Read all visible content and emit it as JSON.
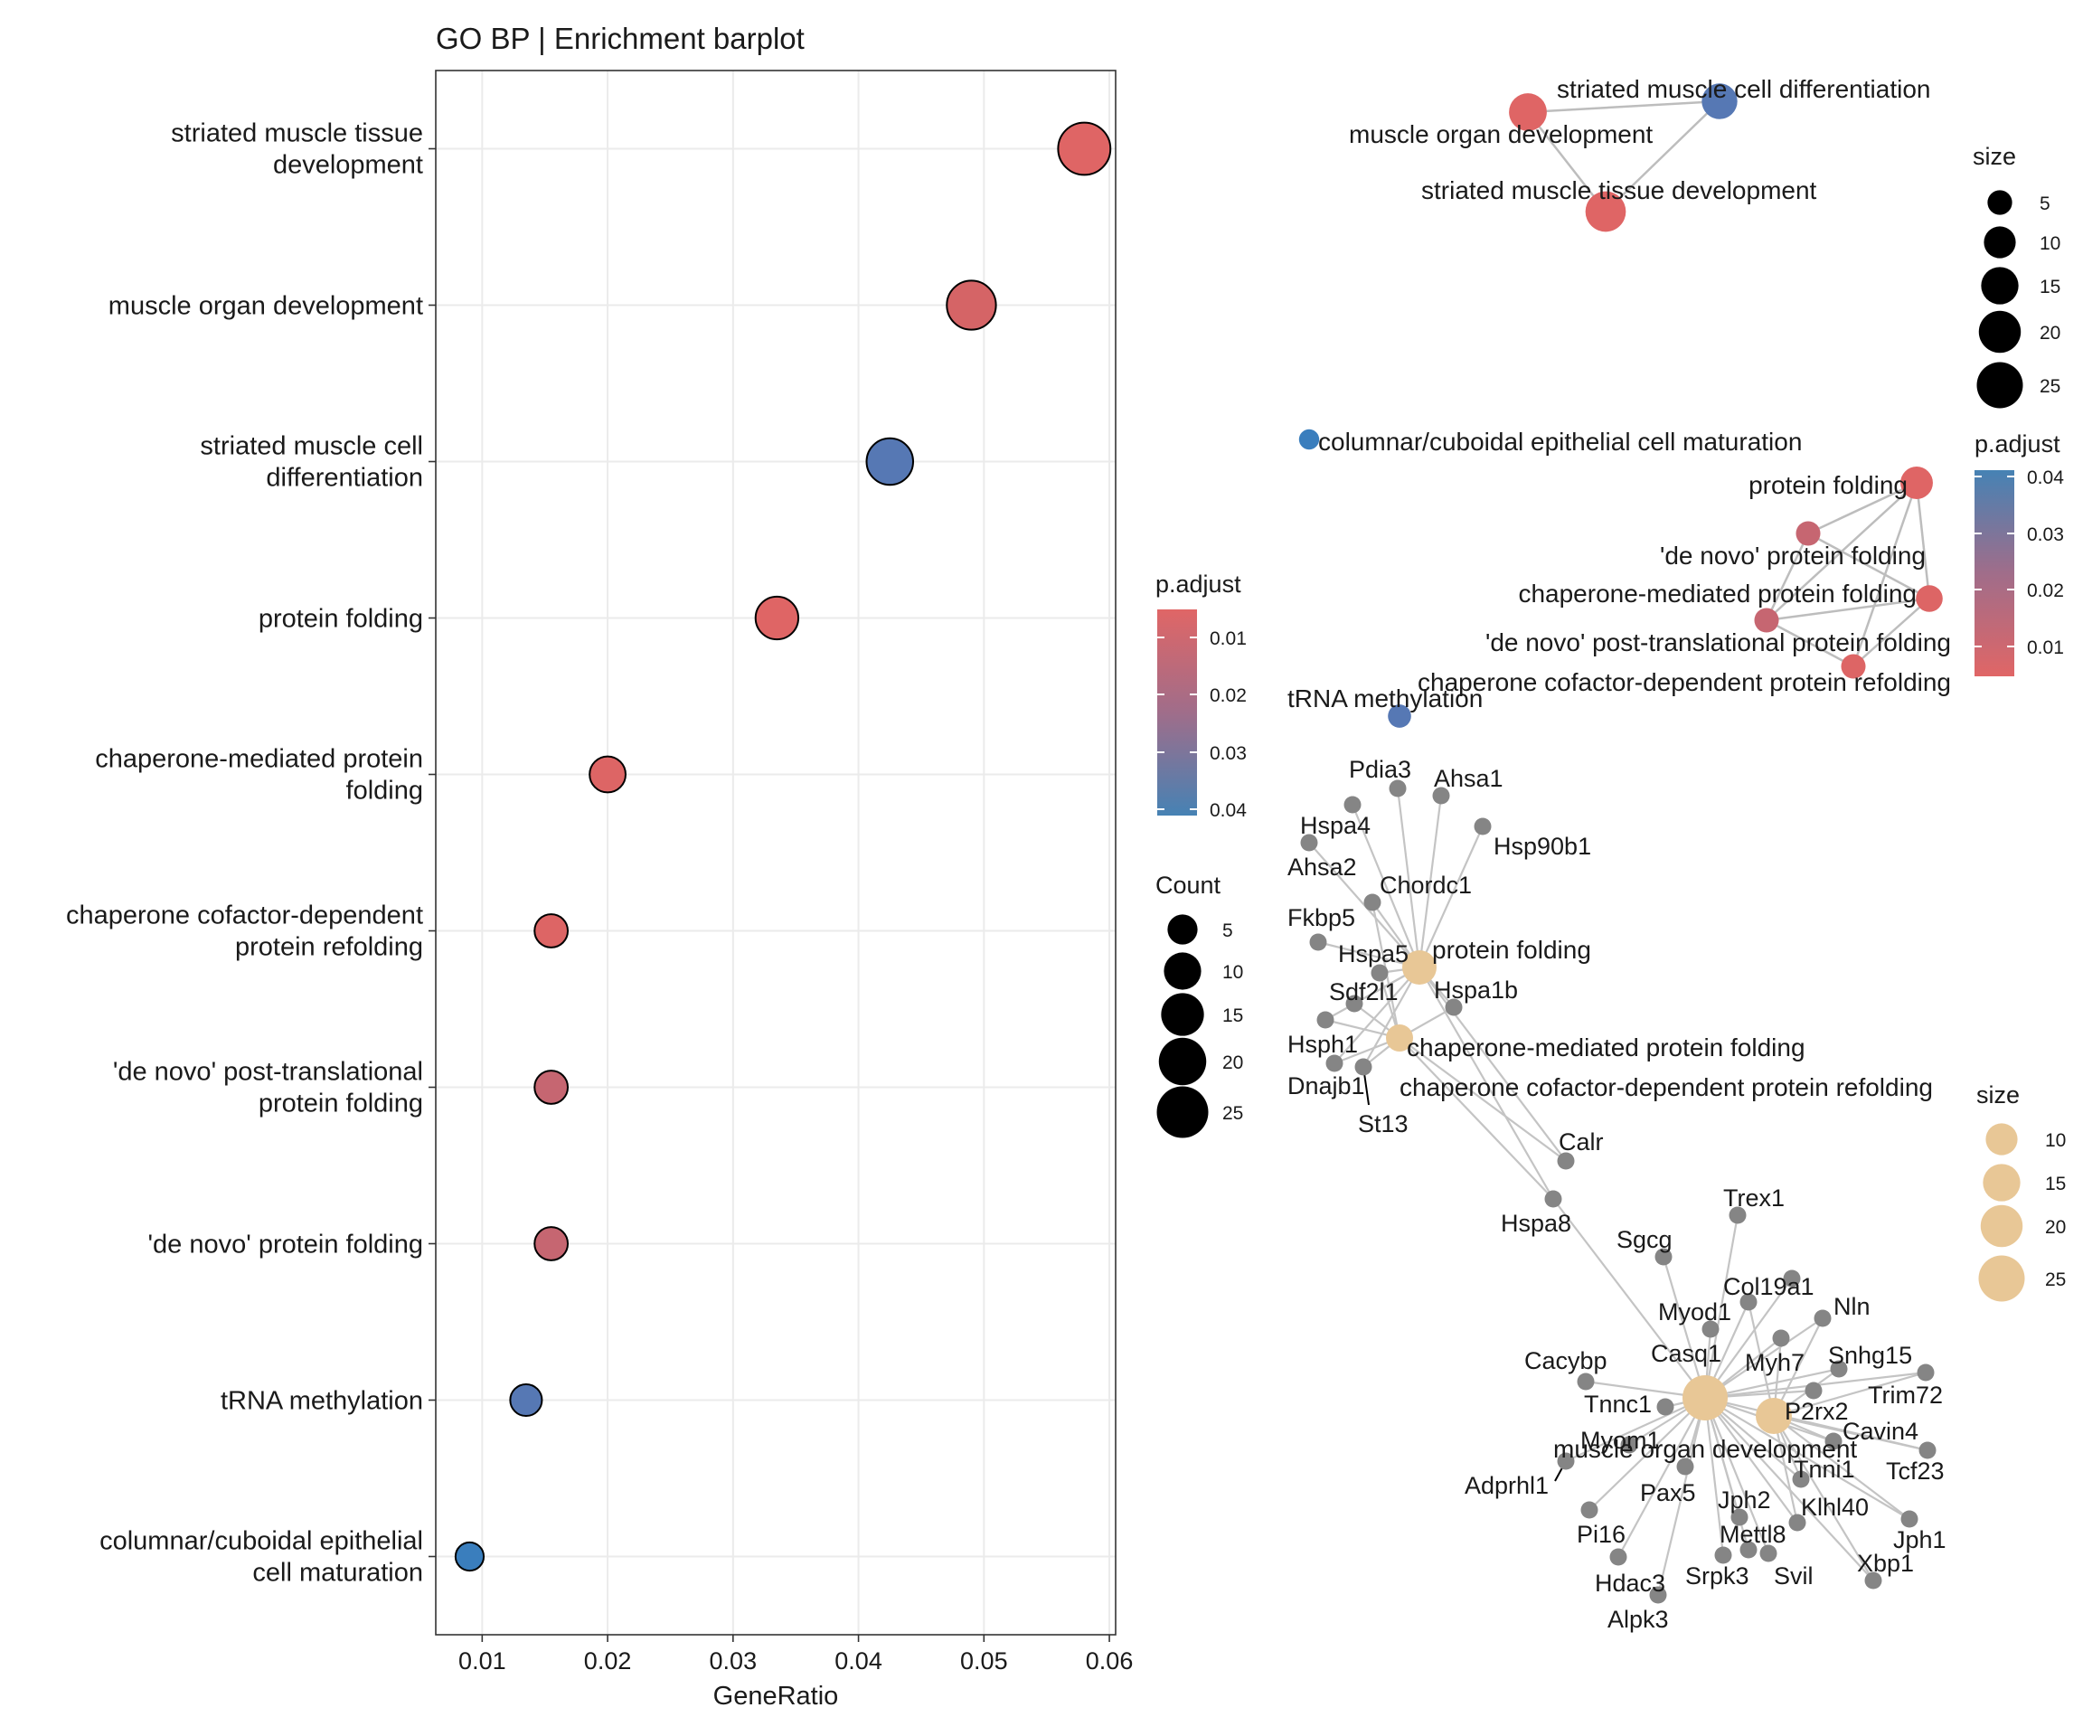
{
  "chart_data": [
    {
      "type": "scatter",
      "title": "GO BP | Enrichment barplot",
      "xlabel": "GeneRatio",
      "ylabel": "",
      "xlim": [
        0.0063,
        0.0605
      ],
      "xticks": [
        0.01,
        0.02,
        0.03,
        0.04,
        0.05,
        0.06
      ],
      "xtick_labels": [
        "0.01",
        "0.02",
        "0.03",
        "0.04",
        "0.05",
        "0.06"
      ],
      "grid": true,
      "categories": [
        {
          "line1": "striated muscle tissue",
          "line2": "development"
        },
        {
          "line1": "muscle organ development",
          "line2": ""
        },
        {
          "line1": "striated muscle cell",
          "line2": "differentiation"
        },
        {
          "line1": "protein folding",
          "line2": ""
        },
        {
          "line1": "chaperone-mediated protein",
          "line2": "folding"
        },
        {
          "line1": "chaperone cofactor-dependent",
          "line2": "protein refolding"
        },
        {
          "line1": "'de novo' post-translational",
          "line2": "protein folding"
        },
        {
          "line1": "'de novo' protein folding",
          "line2": ""
        },
        {
          "line1": "tRNA methylation",
          "line2": ""
        },
        {
          "line1": "columnar/cuboidal epithelial",
          "line2": "cell maturation"
        }
      ],
      "points": [
        {
          "gene_ratio": 0.058,
          "count": 26,
          "p_adjust": 0.006,
          "color": "#df6565"
        },
        {
          "gene_ratio": 0.049,
          "count": 22,
          "p_adjust": 0.006,
          "color": "#d56466"
        },
        {
          "gene_ratio": 0.0425,
          "count": 19,
          "p_adjust": 0.037,
          "color": "#5678b4"
        },
        {
          "gene_ratio": 0.0335,
          "count": 15,
          "p_adjust": 0.006,
          "color": "#df6565"
        },
        {
          "gene_ratio": 0.02,
          "count": 9,
          "p_adjust": 0.007,
          "color": "#dd6565"
        },
        {
          "gene_ratio": 0.0155,
          "count": 7,
          "p_adjust": 0.007,
          "color": "#dd6565"
        },
        {
          "gene_ratio": 0.0155,
          "count": 7,
          "p_adjust": 0.016,
          "color": "#c66671"
        },
        {
          "gene_ratio": 0.0155,
          "count": 7,
          "p_adjust": 0.016,
          "color": "#c66671"
        },
        {
          "gene_ratio": 0.0135,
          "count": 6,
          "p_adjust": 0.037,
          "color": "#5678b4"
        },
        {
          "gene_ratio": 0.009,
          "count": 4,
          "p_adjust": 0.043,
          "color": "#3a7ebd"
        }
      ],
      "legend_padjust": {
        "title": "p.adjust",
        "ticks": [
          "0.01",
          "0.02",
          "0.03",
          "0.04"
        ],
        "colors": [
          "#e06666",
          "#4682b4"
        ]
      },
      "legend_count": {
        "title": "Count",
        "values": [
          "5",
          "10",
          "15",
          "20",
          "25"
        ]
      }
    },
    {
      "type": "network",
      "title": "",
      "nodes": [
        {
          "label": "striated muscle cell differentiation",
          "size": 19,
          "p_adjust": 0.037,
          "color": "#5678b4"
        },
        {
          "label": "muscle organ development",
          "size": 22,
          "p_adjust": 0.006,
          "color": "#df6565"
        },
        {
          "label": "striated muscle tissue development",
          "size": 26,
          "p_adjust": 0.006,
          "color": "#df6565"
        },
        {
          "label": "columnar/cuboidal epithelial cell maturation",
          "size": 4,
          "p_adjust": 0.043,
          "color": "#3a7ebd"
        },
        {
          "label": "protein folding",
          "size": 15,
          "p_adjust": 0.006,
          "color": "#df6565"
        },
        {
          "label": "'de novo' protein folding",
          "size": 7,
          "p_adjust": 0.016,
          "color": "#c66671"
        },
        {
          "label": "chaperone-mediated protein folding",
          "size": 9,
          "p_adjust": 0.007,
          "color": "#dd6565"
        },
        {
          "label": "'de novo' post-translational protein folding",
          "size": 7,
          "p_adjust": 0.016,
          "color": "#c66671"
        },
        {
          "label": "chaperone cofactor-dependent protein refolding",
          "size": 7,
          "p_adjust": 0.007,
          "color": "#dd6565"
        },
        {
          "label": "tRNA methylation",
          "size": 6,
          "p_adjust": 0.037,
          "color": "#5678b4"
        }
      ],
      "edges": [
        [
          "muscle organ development",
          "striated muscle cell differentiation"
        ],
        [
          "striated muscle cell differentiation",
          "striated muscle tissue development"
        ],
        [
          "muscle organ development",
          "striated muscle tissue development"
        ],
        [
          "protein folding",
          "'de novo' protein folding"
        ],
        [
          "protein folding",
          "chaperone-mediated protein folding"
        ],
        [
          "protein folding",
          "'de novo' post-translational protein folding"
        ],
        [
          "protein folding",
          "chaperone cofactor-dependent protein refolding"
        ],
        [
          "'de novo' protein folding",
          "'de novo' post-translational protein folding"
        ],
        [
          "'de novo' protein folding",
          "chaperone-mediated protein folding"
        ],
        [
          "chaperone-mediated protein folding",
          "'de novo' post-translational protein folding"
        ],
        [
          "chaperone-mediated protein folding",
          "chaperone cofactor-dependent protein refolding"
        ],
        [
          "'de novo' post-translational protein folding",
          "chaperone cofactor-dependent protein refolding"
        ]
      ],
      "legend_size": {
        "title": "size",
        "values": [
          "5",
          "10",
          "15",
          "20",
          "25"
        ]
      },
      "legend_padjust": {
        "title": "p.adjust",
        "ticks": [
          "0.04",
          "0.03",
          "0.02",
          "0.01"
        ],
        "colors": [
          "#4682b4",
          "#e06666"
        ]
      }
    },
    {
      "type": "network",
      "title": "",
      "category_color": "#e8c796",
      "gene_color": "#858585",
      "categories": [
        "protein folding",
        "chaperone-mediated protein folding",
        "chaperone cofactor-dependent protein refolding",
        "muscle organ development"
      ],
      "genes": [
        "Pdia3",
        "Ahsa1",
        "Hspa4",
        "Hsp90b1",
        "Ahsa2",
        "Chordc1",
        "Fkbp5",
        "Hspa5",
        "Hspa1b",
        "Sdf2l1",
        "Hsph1",
        "Dnajb1",
        "St13",
        "Calr",
        "Hspa8",
        "Trex1",
        "Sgcg",
        "Col19a1",
        "Myod1",
        "Nln",
        "Casq1",
        "Snhg15",
        "Myh7",
        "Cacybp",
        "Trim72",
        "Tnnc1",
        "P2rx2",
        "Cavin4",
        "Myom1",
        "Tnni1",
        "Tcf23",
        "Adprhl1",
        "Pax5",
        "Klhl40",
        "Jph2",
        "Pi16",
        "Mettl8",
        "Jph1",
        "Hdac3",
        "Srpk3",
        "Svil",
        "Xbp1",
        "Alpk3"
      ],
      "legend_size": {
        "title": "size",
        "values": [
          "10",
          "15",
          "20",
          "25"
        ]
      }
    }
  ]
}
